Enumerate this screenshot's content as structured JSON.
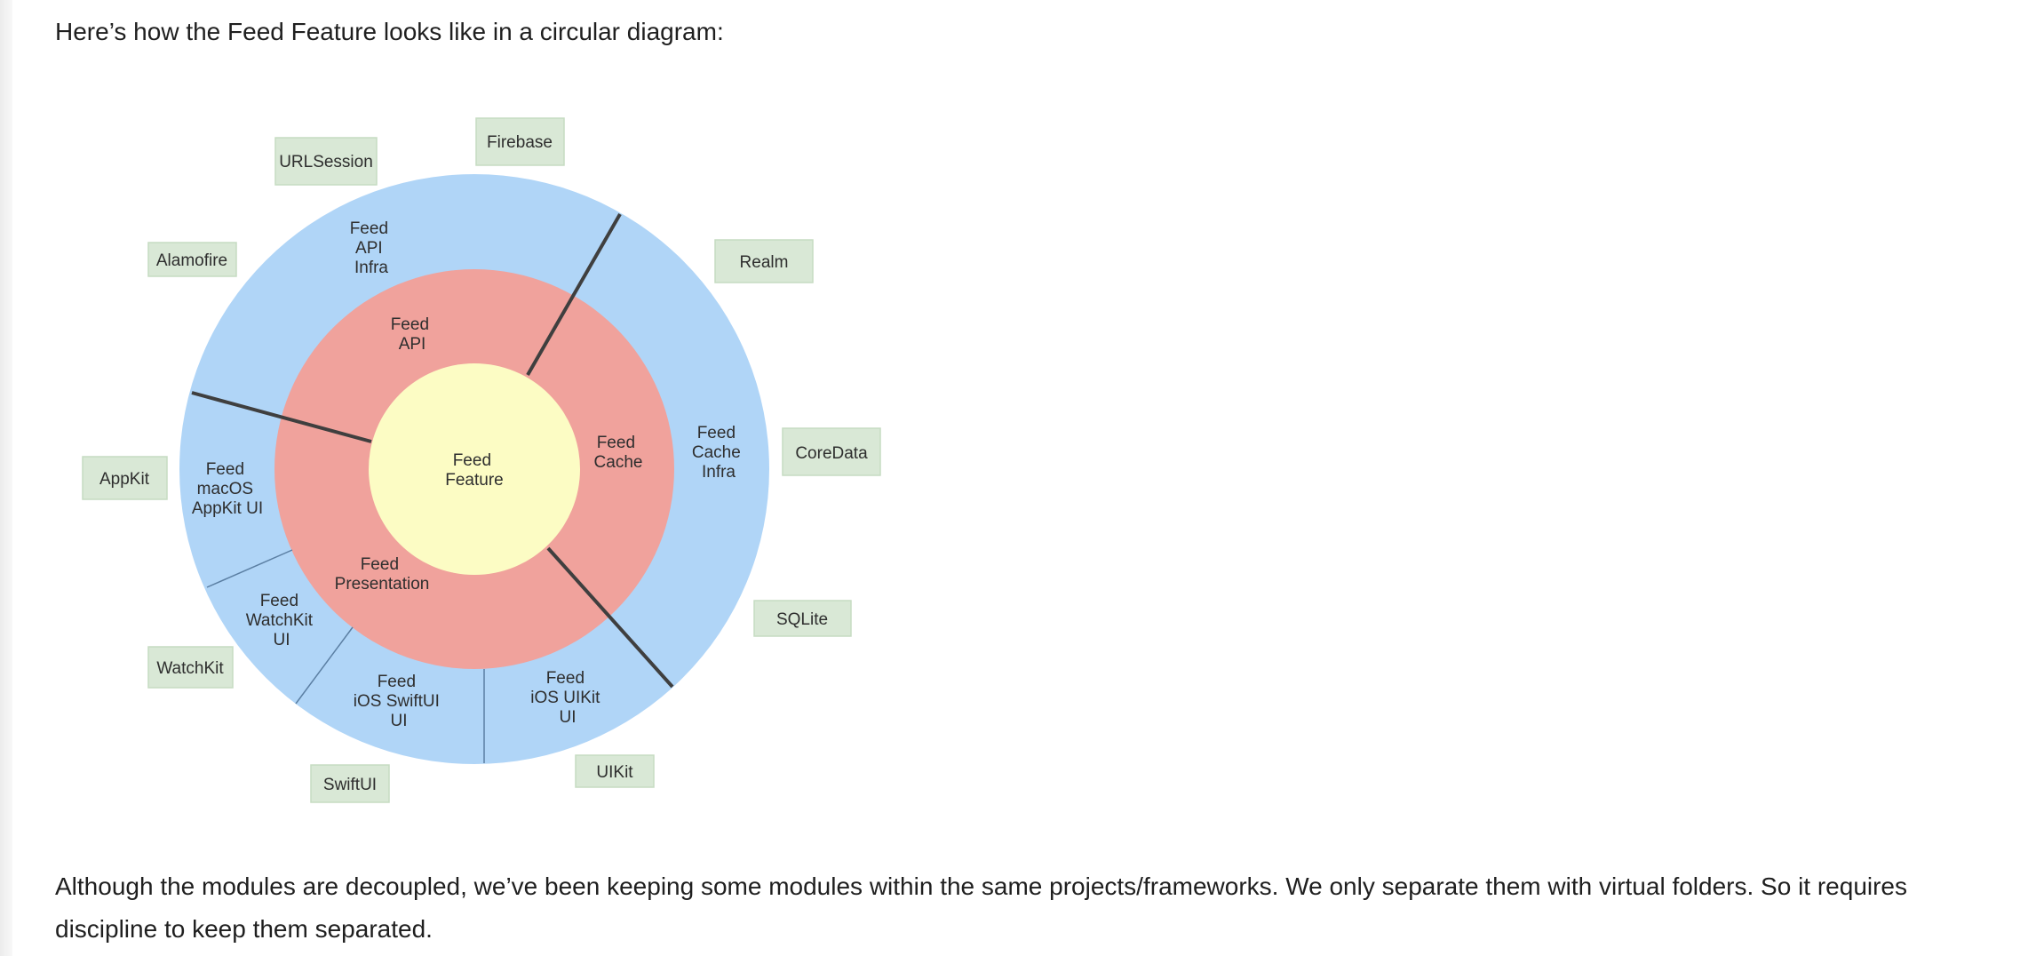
{
  "intro_text": "Here’s how the Feed Feature looks like in a circular diagram:",
  "outro_text": "Although the modules are decoupled, we’ve been keeping some modules within the same projects/frameworks. We only separate them with virtual folders. So it requires discipline to keep them separated.",
  "colors": {
    "outer_ring": "#b0d5f7",
    "middle_ring": "#f0a29c",
    "core": "#fcfcc4",
    "tag": "#d9e8d6",
    "tag_border": "#c6dcc2",
    "divider": "#3f3f3f",
    "thin_divider": "#5b7fa3"
  },
  "diagram": {
    "core": {
      "lines": [
        "Feed",
        "Feature"
      ]
    },
    "middle": {
      "api": {
        "lines": [
          "Feed",
          "API"
        ]
      },
      "cache": {
        "lines": [
          "Feed",
          "Cache"
        ]
      },
      "presentation": {
        "lines": [
          "Feed",
          "Presentation"
        ]
      }
    },
    "outer": {
      "api_infra": {
        "lines": [
          "Feed",
          "API",
          "Infra"
        ]
      },
      "cache_infra": {
        "lines": [
          "Feed",
          "Cache",
          "Infra"
        ]
      },
      "macos_ui": {
        "lines": [
          "Feed",
          "macOS",
          "AppKit UI"
        ]
      },
      "watchkit_ui": {
        "lines": [
          "Feed",
          "WatchKit",
          "UI"
        ]
      },
      "swiftui_ui": {
        "lines": [
          "Feed",
          "iOS SwiftUI",
          "UI"
        ]
      },
      "uikit_ui": {
        "lines": [
          "Feed",
          "iOS UIKit",
          "UI"
        ]
      }
    },
    "tags": {
      "urlsession": "URLSession",
      "firebase": "Firebase",
      "alamofire": "Alamofire",
      "realm": "Realm",
      "appkit": "AppKit",
      "coredata": "CoreData",
      "sqlite": "SQLite",
      "watchkit": "WatchKit",
      "swiftui": "SwiftUI",
      "uikit": "UIKit"
    }
  }
}
